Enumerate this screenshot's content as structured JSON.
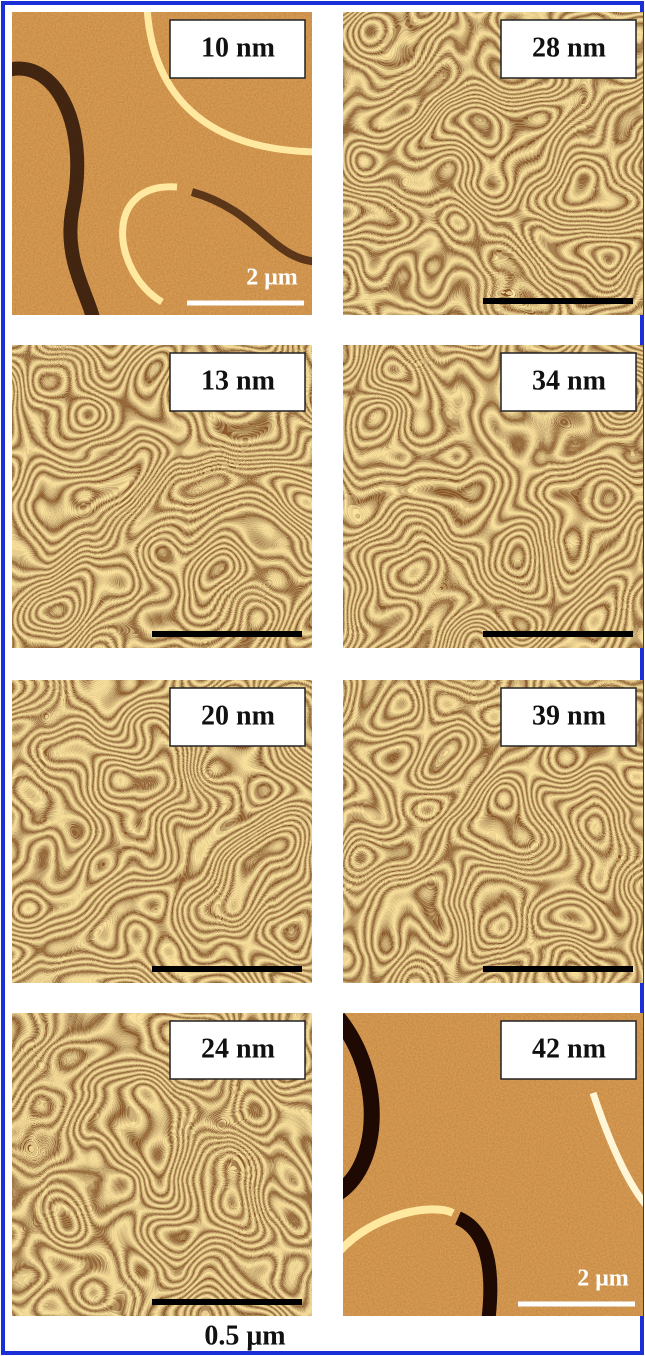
{
  "panels": [
    {
      "label": "10 nm",
      "scale_label": "2 μm"
    },
    {
      "label": "28 nm"
    },
    {
      "label": "13 nm"
    },
    {
      "label": "34 nm"
    },
    {
      "label": "20 nm"
    },
    {
      "label": "39 nm"
    },
    {
      "label": "24 nm"
    },
    {
      "label": "42 nm",
      "scale_label": "2 μm"
    }
  ],
  "caption": "0.5 μm"
}
